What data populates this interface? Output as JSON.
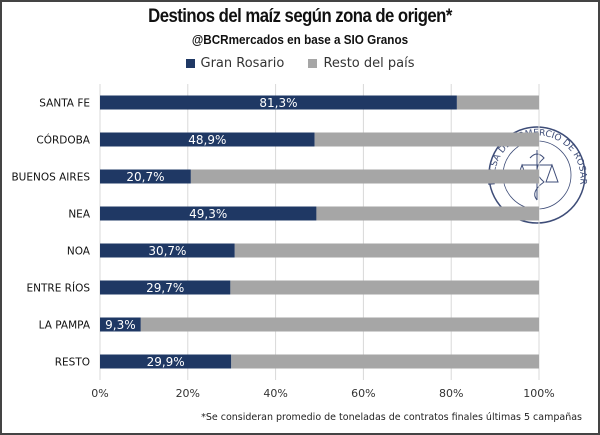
{
  "chart_data": {
    "type": "bar",
    "orientation": "horizontal",
    "stacked": true,
    "title": "Destinos del maíz según zona de origen*",
    "subtitle": "@BCRmercados en base a SIO Granos",
    "categories": [
      "SANTA FE",
      "CÓRDOBA",
      "BUENOS AIRES",
      "NEA",
      "NOA",
      "ENTRE RÍOS",
      "LA PAMPA",
      "RESTO"
    ],
    "series": [
      {
        "name": "Gran Rosario",
        "color": "#1f3864",
        "values": [
          81.3,
          48.9,
          20.7,
          49.3,
          30.7,
          29.7,
          9.3,
          29.9
        ]
      },
      {
        "name": "Resto del país",
        "color": "#a6a6a6",
        "values": [
          18.7,
          51.1,
          79.3,
          50.7,
          69.3,
          70.3,
          90.7,
          70.1
        ]
      }
    ],
    "data_labels": [
      "81,3%",
      "48,9%",
      "20,7%",
      "49,3%",
      "30,7%",
      "29,7%",
      "9,3%",
      "29,9%"
    ],
    "xlim": [
      0,
      100
    ],
    "xticks": [
      0,
      20,
      40,
      60,
      80,
      100
    ],
    "xtick_labels": [
      "0%",
      "20%",
      "40%",
      "60%",
      "80%",
      "100%"
    ],
    "xlabel": "",
    "ylabel": "",
    "grid": true,
    "legend_position": "top-center",
    "footnote": "*Se consideran promedio de toneladas de contratos finales últimas 5 campañas",
    "watermark": "BOLSA DE COMERCIO DE ROSARIO"
  }
}
